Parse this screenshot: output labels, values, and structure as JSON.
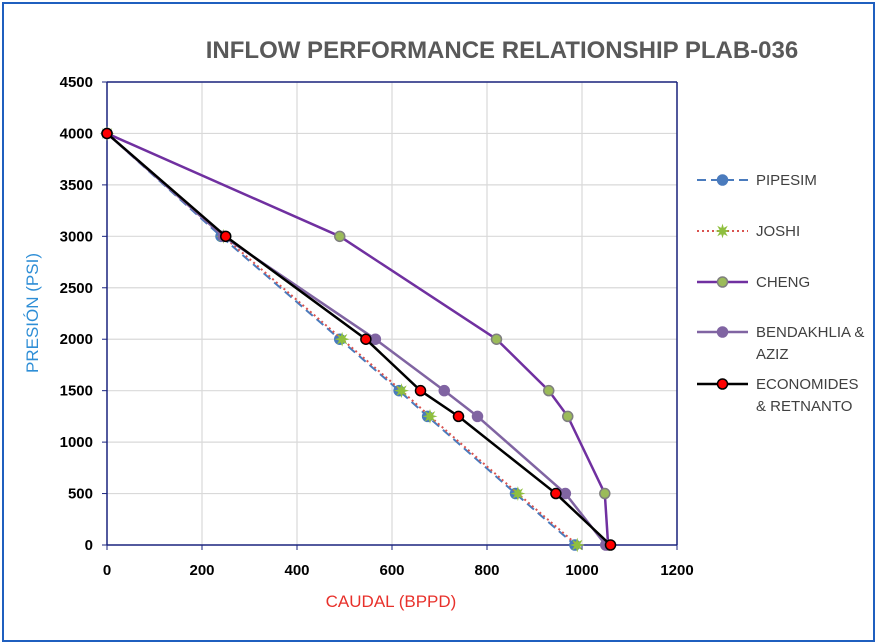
{
  "chart_data": {
    "type": "line",
    "title": "INFLOW PERFORMANCE RELATIONSHIP PLAB-036",
    "xlabel": "CAUDAL (BPPD)",
    "ylabel": "PRESIÓN (PSI)",
    "xlim": [
      0,
      1200
    ],
    "ylim": [
      0,
      4500
    ],
    "xticks": [
      0,
      200,
      400,
      600,
      800,
      1000,
      1200
    ],
    "yticks": [
      0,
      500,
      1000,
      1500,
      2000,
      2500,
      3000,
      3500,
      4000,
      4500
    ],
    "grid": true,
    "legend_position": "right",
    "colors": {
      "title": "#595959",
      "xlabel": "#e8312b",
      "ylabel": "#2e8ed6",
      "frame": "#1f5fbf",
      "grid": "#d9d9d9",
      "axis": "#1a237e"
    },
    "series": [
      {
        "name": "PIPESIM",
        "legend_lines": [
          "PIPESIM"
        ],
        "style": "dashed",
        "line_color": "#4a7bbd",
        "marker_fill": "#4a7bbd",
        "marker_stroke": "#4a7bbd",
        "marker": "circle",
        "points": [
          [
            0,
            4000
          ],
          [
            240,
            3000
          ],
          [
            490,
            2000
          ],
          [
            615,
            1500
          ],
          [
            675,
            1250
          ],
          [
            860,
            500
          ],
          [
            985,
            0
          ]
        ]
      },
      {
        "name": "JOSHI",
        "legend_lines": [
          "JOSHI"
        ],
        "style": "dotted",
        "line_color": "#d9534f",
        "marker_fill": "#8fbf3f",
        "marker_stroke": "#8fbf3f",
        "marker": "star",
        "points": [
          [
            0,
            4000
          ],
          [
            245,
            3000
          ],
          [
            495,
            2000
          ],
          [
            620,
            1500
          ],
          [
            680,
            1250
          ],
          [
            865,
            500
          ],
          [
            990,
            0
          ]
        ]
      },
      {
        "name": "CHENG",
        "legend_lines": [
          "CHENG"
        ],
        "style": "solid",
        "line_color": "#7030a0",
        "marker_fill": "#9bbb59",
        "marker_stroke": "#7f7f7f",
        "marker": "circle",
        "points": [
          [
            0,
            4000
          ],
          [
            490,
            3000
          ],
          [
            820,
            2000
          ],
          [
            930,
            1500
          ],
          [
            970,
            1250
          ],
          [
            1048,
            500
          ],
          [
            1055,
            0
          ]
        ]
      },
      {
        "name": "BENDAKHLIA & AZIZ",
        "legend_lines": [
          "BENDAKHLIA &",
          "AZIZ"
        ],
        "style": "solid",
        "line_color": "#8064a2",
        "marker_fill": "#8064a2",
        "marker_stroke": "#8064a2",
        "marker": "circle",
        "points": [
          [
            0,
            4000
          ],
          [
            245,
            3000
          ],
          [
            565,
            2000
          ],
          [
            710,
            1500
          ],
          [
            780,
            1250
          ],
          [
            965,
            500
          ],
          [
            1050,
            0
          ]
        ]
      },
      {
        "name": "ECONOMIDES & RETNANTO",
        "legend_lines": [
          "ECONOMIDES",
          "& RETNANTO"
        ],
        "style": "solid",
        "line_color": "#000000",
        "marker_fill": "#ff0000",
        "marker_stroke": "#000000",
        "marker": "circle",
        "points": [
          [
            0,
            4000
          ],
          [
            250,
            3000
          ],
          [
            545,
            2000
          ],
          [
            660,
            1500
          ],
          [
            740,
            1250
          ],
          [
            945,
            500
          ],
          [
            1060,
            0
          ]
        ]
      }
    ]
  }
}
